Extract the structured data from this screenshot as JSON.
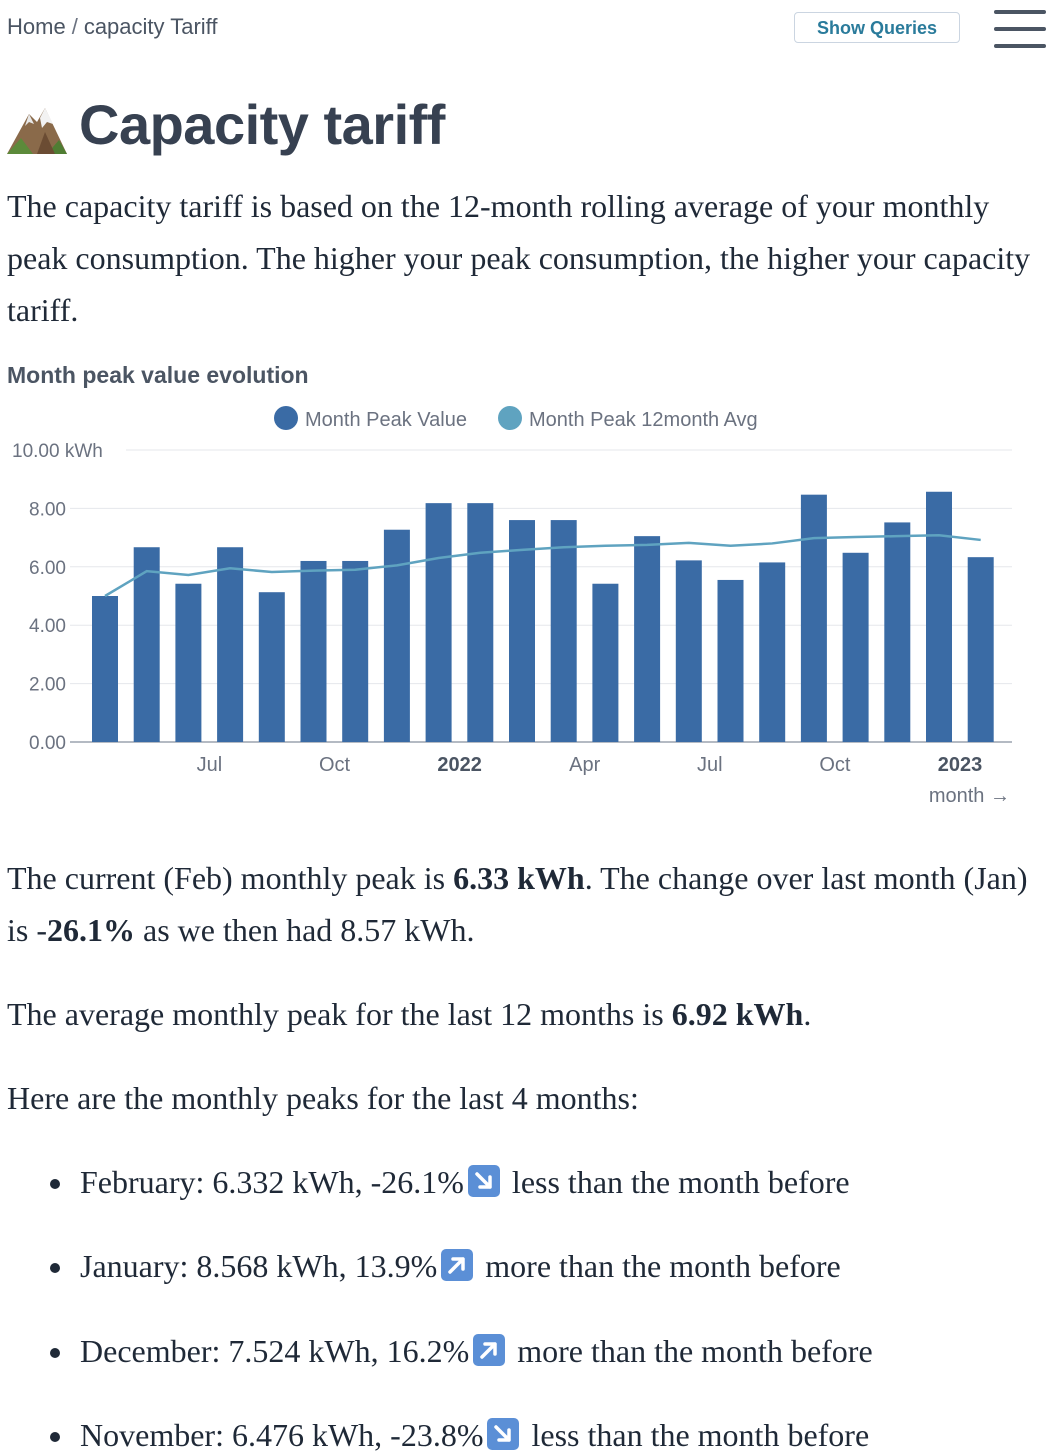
{
  "breadcrumb": {
    "home": "Home",
    "separator": "/",
    "current": "capacity Tariff"
  },
  "header": {
    "show_queries_label": "Show Queries"
  },
  "page": {
    "title": "Capacity tariff",
    "intro": "The capacity tariff is based on the 12-month rolling average of your monthly peak consumption. The higher your peak consumption, the higher your capacity tariff."
  },
  "chart_data": {
    "type": "bar",
    "title": "Month peak value evolution",
    "xlabel": "month →",
    "ylabel": "",
    "y_unit": "kWh",
    "ylim": [
      0,
      10
    ],
    "yticks": [
      "0.00",
      "2.00",
      "4.00",
      "6.00",
      "8.00",
      "10.00 kWh"
    ],
    "x_tick_labels": [
      {
        "index": 2,
        "label": "Jul",
        "bold": false
      },
      {
        "index": 5,
        "label": "Oct",
        "bold": false
      },
      {
        "index": 8,
        "label": "2022",
        "bold": true
      },
      {
        "index": 11,
        "label": "Apr",
        "bold": false
      },
      {
        "index": 14,
        "label": "Jul",
        "bold": false
      },
      {
        "index": 17,
        "label": "Oct",
        "bold": false
      },
      {
        "index": 20,
        "label": "2023",
        "bold": true
      }
    ],
    "categories": [
      "2021-05",
      "2021-06",
      "2021-07",
      "2021-08",
      "2021-09",
      "2021-10",
      "2021-11",
      "2021-12",
      "2022-01",
      "2022-02",
      "2022-03",
      "2022-04",
      "2022-05",
      "2022-06",
      "2022-07",
      "2022-08",
      "2022-09",
      "2022-10",
      "2022-11",
      "2022-12",
      "2023-01",
      "2023-02"
    ],
    "series": [
      {
        "name": "Month Peak Value",
        "type": "bar",
        "color": "#3a6ba5",
        "values": [
          5.0,
          6.67,
          5.42,
          6.67,
          5.13,
          6.2,
          6.2,
          7.27,
          8.18,
          8.18,
          7.6,
          7.6,
          5.42,
          7.05,
          6.22,
          5.55,
          6.15,
          8.47,
          6.48,
          7.52,
          8.57,
          6.33
        ]
      },
      {
        "name": "Month Peak 12month Avg",
        "type": "line",
        "color": "#5fa3c0",
        "values": [
          5.0,
          5.85,
          5.72,
          5.95,
          5.82,
          5.87,
          5.9,
          6.05,
          6.3,
          6.48,
          6.58,
          6.67,
          6.72,
          6.75,
          6.82,
          6.72,
          6.8,
          6.98,
          7.02,
          7.05,
          7.08,
          6.92
        ]
      }
    ],
    "grid": true,
    "legend_position": "top-center"
  },
  "summary": {
    "current_pre": "The current (Feb) monthly peak is ",
    "current_value": "6.33 kWh",
    "change_pre": ". The change over last month (Jan) is -",
    "change_value": "26.1%",
    "change_post": " as we then had 8.57 kWh.",
    "avg_pre": "The average monthly peak for the last 12 months is ",
    "avg_value": "6.92 kWh",
    "avg_post": ".",
    "list_intro": "Here are the monthly peaks for the last 4 months:"
  },
  "peaks_list": [
    {
      "text_pre": "February: 6.332 kWh, -26.1%",
      "direction": "down",
      "icon": "arrow-down-right-icon",
      "text_post": " less than the month before"
    },
    {
      "text_pre": "January: 8.568 kWh, 13.9%",
      "direction": "up",
      "icon": "arrow-up-right-icon",
      "text_post": " more than the month before"
    },
    {
      "text_pre": "December: 7.524 kWh, 16.2%",
      "direction": "up",
      "icon": "arrow-up-right-icon",
      "text_post": " more than the month before"
    },
    {
      "text_pre": "November: 6.476 kWh, -23.8%",
      "direction": "down",
      "icon": "arrow-down-right-icon",
      "text_post": " less than the month before"
    }
  ]
}
